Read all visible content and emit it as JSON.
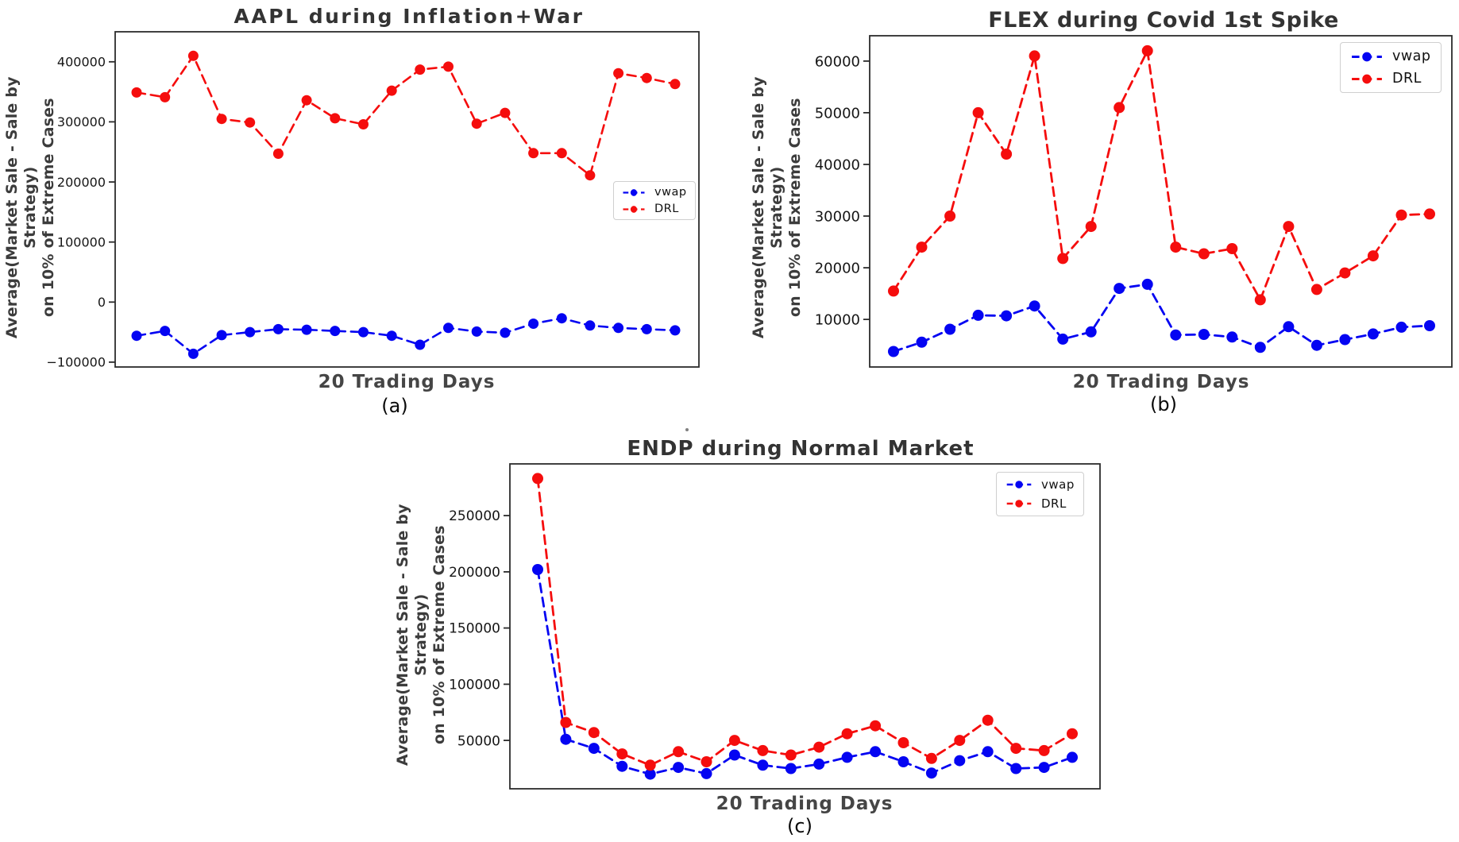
{
  "figure": {
    "background": "#ffffff",
    "text_color": "#333333",
    "axis_color": "#2b2b2b"
  },
  "chart_data": [
    {
      "id": "a",
      "type": "line",
      "title": "AAPL during Inflation+War",
      "xlabel": "20 Trading Days",
      "ylabel_lines": [
        "Average(Market Sale -  Sale by Strategy)",
        "on 10% of Extreme Cases"
      ],
      "caption": "(a)",
      "legend_position": "center right",
      "grid": false,
      "x": [
        1,
        2,
        3,
        4,
        5,
        6,
        7,
        8,
        9,
        10,
        11,
        12,
        13,
        14,
        15,
        16,
        17,
        18,
        19,
        20
      ],
      "ylim": [
        -108000,
        450000
      ],
      "yticks": [
        400000,
        300000,
        200000,
        100000,
        0,
        -100000
      ],
      "ytick_labels": [
        "400000",
        "300000",
        "200000",
        "100000",
        "0",
        "−100000"
      ],
      "series": [
        {
          "name": "vwap",
          "color": "#0404f2",
          "linestyle": "dashed",
          "marker": "circle",
          "values": [
            -56000,
            -48000,
            -86000,
            -55000,
            -50000,
            -45000,
            -46000,
            -48000,
            -50000,
            -56000,
            -71000,
            -43000,
            -49000,
            -51000,
            -36000,
            -27000,
            -39000,
            -43000,
            -45000,
            -47000
          ]
        },
        {
          "name": "DRL",
          "color": "#f50d0d",
          "linestyle": "dashed",
          "marker": "circle",
          "values": [
            349000,
            341000,
            410000,
            305000,
            299000,
            247000,
            336000,
            306000,
            296000,
            352000,
            387000,
            392000,
            297000,
            315000,
            248000,
            248000,
            211000,
            381000,
            373000,
            363000
          ]
        }
      ]
    },
    {
      "id": "b",
      "type": "line",
      "title": "FLEX during Covid 1st Spike",
      "xlabel": "20 Trading Days",
      "ylabel_lines": [
        "Average(Market Sale -  Sale by Strategy)",
        "on 10% of Extreme Cases"
      ],
      "caption": "(b)",
      "legend_position": "upper right",
      "grid": false,
      "x": [
        1,
        2,
        3,
        4,
        5,
        6,
        7,
        8,
        9,
        10,
        11,
        12,
        13,
        14,
        15,
        16,
        17,
        18,
        19,
        20
      ],
      "ylim": [
        800,
        64900
      ],
      "yticks": [
        60000,
        50000,
        40000,
        30000,
        20000,
        10000
      ],
      "ytick_labels": [
        "60000",
        "50000",
        "40000",
        "30000",
        "20000",
        "10000"
      ],
      "series": [
        {
          "name": "vwap",
          "color": "#0404f2",
          "linestyle": "dashed",
          "marker": "circle",
          "values": [
            3800,
            5600,
            8100,
            10800,
            10700,
            12600,
            6200,
            7600,
            16000,
            16800,
            7000,
            7100,
            6600,
            4600,
            8600,
            5000,
            6100,
            7200,
            8500,
            8800
          ]
        },
        {
          "name": "DRL",
          "color": "#f50d0d",
          "linestyle": "dashed",
          "marker": "circle",
          "values": [
            15500,
            24000,
            30000,
            50000,
            42000,
            61000,
            21800,
            28000,
            51000,
            62000,
            24000,
            22700,
            23700,
            13800,
            28000,
            15800,
            19000,
            22300,
            30200,
            30400
          ]
        }
      ]
    },
    {
      "id": "c",
      "type": "line",
      "title": "ENDP during Normal Market",
      "xlabel": "20 Trading Days",
      "ylabel_lines": [
        "Average(Market Sale -  Sale by Strategy)",
        "on 10% of Extreme Cases"
      ],
      "caption": "(c)",
      "legend_position": "upper right",
      "grid": false,
      "x": [
        1,
        2,
        3,
        4,
        5,
        6,
        7,
        8,
        9,
        10,
        11,
        12,
        13,
        14,
        15,
        16,
        17,
        18,
        19,
        20
      ],
      "ylim": [
        7000,
        296000
      ],
      "yticks": [
        250000,
        200000,
        150000,
        100000,
        50000
      ],
      "ytick_labels": [
        "250000",
        "200000",
        "150000",
        "100000",
        "50000"
      ],
      "series": [
        {
          "name": "vwap",
          "color": "#0404f2",
          "linestyle": "dashed",
          "marker": "circle",
          "values": [
            202000,
            51000,
            43000,
            27000,
            20000,
            26000,
            20500,
            37000,
            28000,
            25000,
            29000,
            35000,
            40000,
            31000,
            21000,
            32000,
            40000,
            25000,
            26000,
            35000
          ]
        },
        {
          "name": "DRL",
          "color": "#f50d0d",
          "linestyle": "dashed",
          "marker": "circle",
          "values": [
            283000,
            66000,
            57000,
            38000,
            28000,
            40000,
            31000,
            50000,
            41000,
            37000,
            44000,
            56000,
            63000,
            48000,
            34000,
            50000,
            68000,
            43000,
            41000,
            56000
          ]
        }
      ]
    }
  ]
}
